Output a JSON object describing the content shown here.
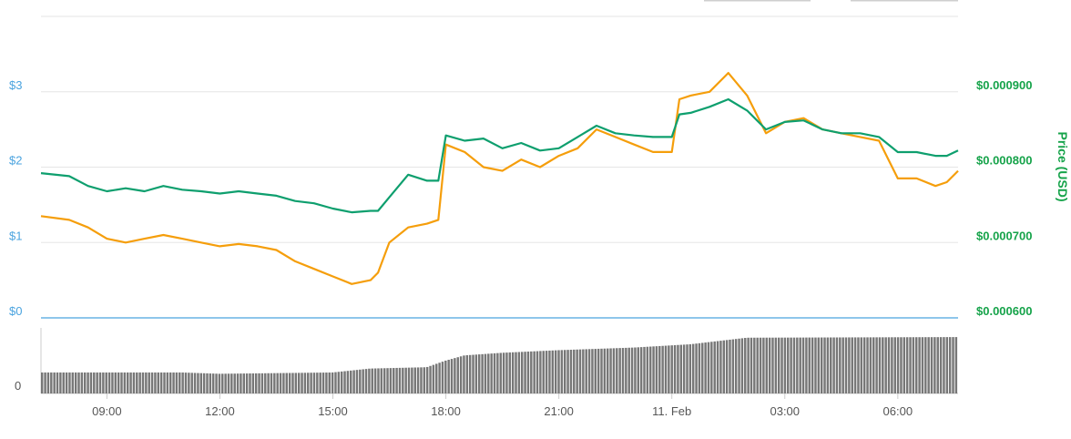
{
  "chart_data": {
    "type": "line",
    "left_axis": {
      "ticks": [
        "$0",
        "$1",
        "$2",
        "$3"
      ],
      "ylim": [
        0,
        4
      ],
      "color": "#4aa3df"
    },
    "right_axis": {
      "label": "Price (USD)",
      "ticks": [
        "$0.000600",
        "$0.000700",
        "$0.000800",
        "$0.000900"
      ],
      "ylim": [
        0.0006,
        0.001
      ],
      "color": "#16a34a"
    },
    "x_axis": {
      "tick_labels": [
        "09:00",
        "12:00",
        "15:00",
        "18:00",
        "21:00",
        "11. Feb",
        "03:00",
        "06:00"
      ],
      "tick_hours": [
        9,
        12,
        15,
        18,
        21,
        24,
        27,
        30
      ],
      "range_hours": [
        7.25,
        31.6
      ]
    },
    "volume_axis": {
      "tick_label": "0"
    },
    "series": [
      {
        "color": "#f59e0b",
        "axis": "left",
        "x": [
          7.25,
          8.0,
          8.5,
          9.0,
          9.5,
          10.0,
          10.5,
          11.0,
          11.5,
          12.0,
          12.5,
          13.0,
          13.5,
          14.0,
          14.5,
          15.0,
          15.5,
          16.0,
          16.2,
          16.5,
          17.0,
          17.5,
          17.8,
          18.0,
          18.5,
          19.0,
          19.5,
          20.0,
          20.5,
          21.0,
          21.5,
          22.0,
          22.5,
          23.0,
          23.5,
          24.0,
          24.2,
          24.5,
          25.0,
          25.5,
          26.0,
          26.5,
          27.0,
          27.5,
          28.0,
          28.5,
          29.0,
          29.5,
          30.0,
          30.5,
          31.0,
          31.3,
          31.6
        ],
        "y": [
          1.35,
          1.3,
          1.2,
          1.05,
          1.0,
          1.05,
          1.1,
          1.05,
          1.0,
          0.95,
          0.98,
          0.95,
          0.9,
          0.75,
          0.65,
          0.55,
          0.45,
          0.5,
          0.6,
          1.0,
          1.2,
          1.25,
          1.3,
          2.3,
          2.2,
          2.0,
          1.95,
          2.1,
          2.0,
          2.15,
          2.25,
          2.5,
          2.4,
          2.3,
          2.2,
          2.2,
          2.9,
          2.95,
          3.0,
          3.25,
          2.95,
          2.45,
          2.6,
          2.65,
          2.5,
          2.45,
          2.4,
          2.35,
          1.85,
          1.85,
          1.75,
          1.8,
          1.95
        ]
      },
      {
        "color": "#0e9f6e",
        "axis": "right",
        "x": [
          7.25,
          8.0,
          8.5,
          9.0,
          9.5,
          10.0,
          10.5,
          11.0,
          11.5,
          12.0,
          12.5,
          13.0,
          13.5,
          14.0,
          14.5,
          15.0,
          15.5,
          16.0,
          16.2,
          16.5,
          17.0,
          17.5,
          17.8,
          18.0,
          18.5,
          19.0,
          19.5,
          20.0,
          20.5,
          21.0,
          21.5,
          22.0,
          22.5,
          23.0,
          23.5,
          24.0,
          24.2,
          24.5,
          25.0,
          25.5,
          26.0,
          26.5,
          27.0,
          27.5,
          28.0,
          28.5,
          29.0,
          29.5,
          30.0,
          30.5,
          31.0,
          31.3,
          31.6
        ],
        "y": [
          0.000792,
          0.000788,
          0.000775,
          0.000768,
          0.000772,
          0.000768,
          0.000775,
          0.00077,
          0.000768,
          0.000765,
          0.000768,
          0.000765,
          0.000762,
          0.000755,
          0.000752,
          0.000745,
          0.00074,
          0.000742,
          0.000742,
          0.00076,
          0.00079,
          0.000782,
          0.000782,
          0.000842,
          0.000835,
          0.000838,
          0.000825,
          0.000832,
          0.000822,
          0.000825,
          0.00084,
          0.000855,
          0.000845,
          0.000842,
          0.00084,
          0.00084,
          0.00087,
          0.000872,
          0.00088,
          0.00089,
          0.000875,
          0.00085,
          0.00086,
          0.000862,
          0.00085,
          0.000845,
          0.000845,
          0.00084,
          0.00082,
          0.00082,
          0.000815,
          0.000815,
          0.000822
        ]
      }
    ],
    "volume": {
      "color": "#777777",
      "x": [
        7.25,
        11.0,
        12.0,
        15.0,
        16.0,
        17.5,
        18.0,
        18.5,
        19.5,
        21.0,
        23.0,
        24.5,
        26.0,
        31.6
      ],
      "y": [
        0.32,
        0.32,
        0.3,
        0.32,
        0.38,
        0.4,
        0.5,
        0.58,
        0.62,
        0.66,
        0.7,
        0.75,
        0.85,
        0.86
      ]
    }
  }
}
